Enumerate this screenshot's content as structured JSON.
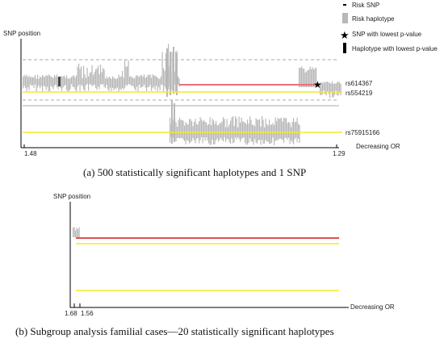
{
  "legend": {
    "items": [
      {
        "label": "Risk SNP",
        "icon": "small-dash-icon"
      },
      {
        "label": "Risk haplotype",
        "icon": "grey-bar-icon"
      },
      {
        "label": "SNP with lowest p-value",
        "icon": "star-icon"
      },
      {
        "label": "Haplotype with lowest p-value",
        "icon": "black-bar-icon"
      }
    ]
  },
  "colors": {
    "haplotype": "#b8b8b8",
    "snp_line": "#e8707a",
    "yellow_line": "#f2ea2a",
    "axis": "#000000",
    "dashed": "#aaaaaa"
  },
  "chart_data": [
    {
      "type": "line",
      "panel": "a",
      "ylabel": "SNP position",
      "xlabel": "Decreasing OR",
      "x_ticks": [
        "1.48",
        "1.29"
      ],
      "snp_labels": [
        "rs614367",
        "rs554219",
        "rs75915166"
      ],
      "caption_prefix": "(a)",
      "caption_text": "500 statistically significant haplotypes and 1 SNP",
      "haplotype_count": 500,
      "snp_count": 1
    },
    {
      "type": "line",
      "panel": "b",
      "ylabel": "SNP position",
      "xlabel": "Decreasing OR",
      "x_ticks": [
        "1.68",
        "1.56"
      ],
      "caption_prefix": "(b)",
      "caption_text": "Subgroup analysis familial cases—20 statistically significant haplotypes",
      "haplotype_count": 20
    }
  ]
}
